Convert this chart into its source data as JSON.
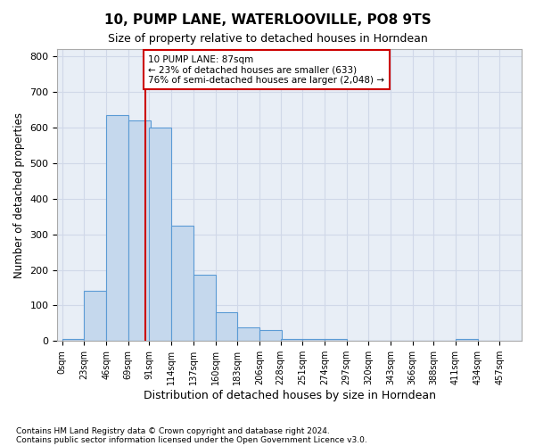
{
  "title1": "10, PUMP LANE, WATERLOOVILLE, PO8 9TS",
  "title2": "Size of property relative to detached houses in Horndean",
  "xlabel": "Distribution of detached houses by size in Horndean",
  "ylabel": "Number of detached properties",
  "footnote1": "Contains HM Land Registry data © Crown copyright and database right 2024.",
  "footnote2": "Contains public sector information licensed under the Open Government Licence v3.0.",
  "annotation_line1": "10 PUMP LANE: 87sqm",
  "annotation_line2": "← 23% of detached houses are smaller (633)",
  "annotation_line3": "76% of semi-detached houses are larger (2,048) →",
  "property_size": 87,
  "bar_left_edges": [
    0,
    23,
    46,
    69,
    91,
    114,
    137,
    160,
    183,
    206,
    228,
    251,
    274,
    297,
    320,
    343,
    366,
    388,
    411,
    434
  ],
  "bar_heights": [
    5,
    140,
    635,
    620,
    600,
    325,
    185,
    80,
    38,
    30,
    5,
    5,
    5,
    0,
    0,
    0,
    0,
    0,
    5,
    0
  ],
  "bin_width": 23,
  "bar_color": "#c5d8ed",
  "bar_edge_color": "#5b9bd5",
  "red_line_color": "#cc0000",
  "annotation_box_color": "#cc0000",
  "grid_color": "#d0d8e8",
  "bg_color": "#e8eef6",
  "ylim": [
    0,
    820
  ],
  "yticks": [
    0,
    100,
    200,
    300,
    400,
    500,
    600,
    700,
    800
  ],
  "xtick_positions": [
    0,
    23,
    46,
    69,
    91,
    114,
    137,
    160,
    183,
    206,
    228,
    251,
    274,
    297,
    320,
    343,
    366,
    388,
    411,
    434,
    457
  ],
  "tick_labels": [
    "0sqm",
    "23sqm",
    "46sqm",
    "69sqm",
    "91sqm",
    "114sqm",
    "137sqm",
    "160sqm",
    "183sqm",
    "206sqm",
    "228sqm",
    "251sqm",
    "274sqm",
    "297sqm",
    "320sqm",
    "343sqm",
    "366sqm",
    "388sqm",
    "411sqm",
    "434sqm",
    "457sqm"
  ]
}
